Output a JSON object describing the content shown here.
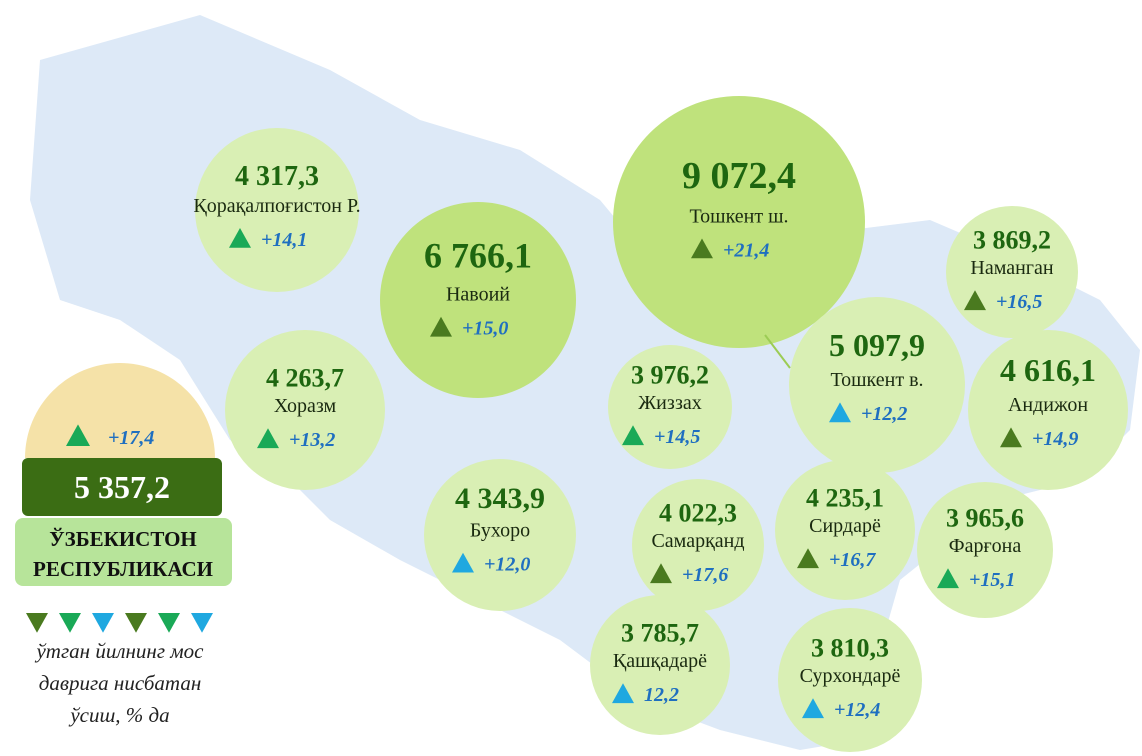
{
  "regions": [
    {
      "value": "4 317,3",
      "name": "Қорақалпоғистон Р.",
      "change": "+14,1",
      "fill": "#d9efb4",
      "trend_color": "#1aa957"
    },
    {
      "value": "6 766,1",
      "name": "Навоий",
      "change": "+15,0",
      "fill": "#bfe27c",
      "trend_color": "#4a7a1f"
    },
    {
      "value": "9 072,4",
      "name": "Тошкент ш.",
      "change": "+21,4",
      "fill": "#bfe27c",
      "trend_color": "#4a7a1f"
    },
    {
      "value": "3 869,2",
      "name": "Наманган",
      "change": "+16,5",
      "fill": "#d9efb4",
      "trend_color": "#4a7a1f"
    },
    {
      "value": "4 263,7",
      "name": "Хоразм",
      "change": "+13,2",
      "fill": "#d9efb4",
      "trend_color": "#1aa957"
    },
    {
      "value": "3 976,2",
      "name": "Жиззах",
      "change": "+14,5",
      "fill": "#d9efb4",
      "trend_color": "#1aa957"
    },
    {
      "value": "5 097,9",
      "name": "Тошкент в.",
      "change": "+12,2",
      "fill": "#d9efb4",
      "trend_color": "#1fa8e0"
    },
    {
      "value": "4 616,1",
      "name": "Андижон",
      "change": "+14,9",
      "fill": "#d9efb4",
      "trend_color": "#4a7a1f"
    },
    {
      "value": "4 343,9",
      "name": "Бухоро",
      "change": "+12,0",
      "fill": "#d9efb4",
      "trend_color": "#1fa8e0"
    },
    {
      "value": "4 022,3",
      "name": "Самарқанд",
      "change": "+17,6",
      "fill": "#d9efb4",
      "trend_color": "#4a7a1f"
    },
    {
      "value": "4 235,1",
      "name": "Сирдарё",
      "change": "+16,7",
      "fill": "#d9efb4",
      "trend_color": "#4a7a1f"
    },
    {
      "value": "3 965,6",
      "name": "Фарғона",
      "change": "+15,1",
      "fill": "#d9efb4",
      "trend_color": "#1aa957"
    },
    {
      "value": "3 785,7",
      "name": "Қашқадарё",
      "change": "12,2",
      "fill": "#d9efb4",
      "trend_color": "#1fa8e0"
    },
    {
      "value": "3 810,3",
      "name": "Сурхондарё",
      "change": "+12,4",
      "fill": "#d9efb4",
      "trend_color": "#1fa8e0"
    }
  ],
  "republic": {
    "change": "+17,4",
    "trend_color": "#1aa957",
    "value": "5 357,2",
    "name_lines": [
      "ЎЗБЕКИСТОН",
      "РЕСПУБЛИКАСИ"
    ]
  },
  "legend": {
    "marker_colors": [
      "#4a7a1f",
      "#1aa957",
      "#1fa8e0",
      "#4a7a1f",
      "#1aa957",
      "#1fa8e0"
    ],
    "text_lines": [
      "ўтган йилнинг мос",
      "даврига нисбатан",
      "ўсиш, % да"
    ]
  }
}
